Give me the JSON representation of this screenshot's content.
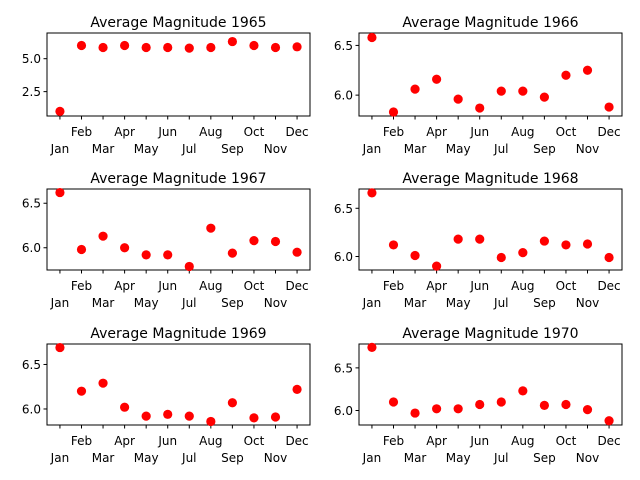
{
  "chart_data": [
    {
      "type": "scatter",
      "title": "Average Magnitude 1965",
      "categories": [
        "Jan",
        "Feb",
        "Mar",
        "Apr",
        "May",
        "Jun",
        "Jul",
        "Aug",
        "Sep",
        "Oct",
        "Nov",
        "Dec"
      ],
      "values": [
        1.0,
        6.0,
        5.85,
        6.0,
        5.85,
        5.85,
        5.8,
        5.85,
        6.3,
        6.0,
        5.85,
        5.9
      ],
      "ylim": [
        0.65,
        6.95
      ],
      "yticks": [
        2.5,
        5.0
      ],
      "ytick_labels": [
        "2.5",
        "5.0"
      ],
      "marker_color": "#ff0000"
    },
    {
      "type": "scatter",
      "title": "Average Magnitude 1966",
      "categories": [
        "Jan",
        "Feb",
        "Mar",
        "Apr",
        "May",
        "Jun",
        "Jul",
        "Aug",
        "Sep",
        "Oct",
        "Nov",
        "Dec"
      ],
      "values": [
        6.58,
        5.83,
        6.06,
        6.16,
        5.96,
        5.87,
        6.04,
        6.04,
        5.98,
        6.2,
        6.25,
        5.88
      ],
      "ylim": [
        5.79,
        6.625
      ],
      "yticks": [
        6.0,
        6.5
      ],
      "ytick_labels": [
        "6.0",
        "6.5"
      ],
      "marker_color": "#ff0000"
    },
    {
      "type": "scatter",
      "title": "Average Magnitude 1967",
      "categories": [
        "Jan",
        "Feb",
        "Mar",
        "Apr",
        "May",
        "Jun",
        "Jul",
        "Aug",
        "Sep",
        "Oct",
        "Nov",
        "Dec"
      ],
      "values": [
        6.62,
        5.98,
        6.13,
        6.0,
        5.92,
        5.92,
        5.79,
        6.22,
        5.94,
        6.08,
        6.07,
        5.95
      ],
      "ylim": [
        5.75,
        6.66
      ],
      "yticks": [
        6.0,
        6.5
      ],
      "ytick_labels": [
        "6.0",
        "6.5"
      ],
      "marker_color": "#ff0000"
    },
    {
      "type": "scatter",
      "title": "Average Magnitude 1968",
      "categories": [
        "Jan",
        "Feb",
        "Mar",
        "Apr",
        "May",
        "Jun",
        "Jul",
        "Aug",
        "Sep",
        "Oct",
        "Nov",
        "Dec"
      ],
      "values": [
        6.66,
        6.12,
        6.01,
        5.9,
        6.18,
        6.18,
        5.99,
        6.04,
        6.16,
        6.12,
        6.13,
        5.99
      ],
      "ylim": [
        5.86,
        6.7
      ],
      "yticks": [
        6.0,
        6.5
      ],
      "ytick_labels": [
        "6.0",
        "6.5"
      ],
      "marker_color": "#ff0000"
    },
    {
      "type": "scatter",
      "title": "Average Magnitude 1969",
      "categories": [
        "Jan",
        "Feb",
        "Mar",
        "Apr",
        "May",
        "Jun",
        "Jul",
        "Aug",
        "Sep",
        "Oct",
        "Nov",
        "Dec"
      ],
      "values": [
        6.69,
        6.2,
        6.29,
        6.02,
        5.92,
        5.94,
        5.92,
        5.86,
        6.07,
        5.9,
        5.91,
        6.22
      ],
      "ylim": [
        5.82,
        6.73
      ],
      "yticks": [
        6.0,
        6.5
      ],
      "ytick_labels": [
        "6.0",
        "6.5"
      ],
      "marker_color": "#ff0000"
    },
    {
      "type": "scatter",
      "title": "Average Magnitude 1970",
      "categories": [
        "Jan",
        "Feb",
        "Mar",
        "Apr",
        "May",
        "Jun",
        "Jul",
        "Aug",
        "Sep",
        "Oct",
        "Nov",
        "Dec"
      ],
      "values": [
        6.74,
        6.1,
        5.97,
        6.02,
        6.02,
        6.07,
        6.1,
        6.23,
        6.06,
        6.07,
        6.01,
        5.88
      ],
      "ylim": [
        5.83,
        6.78
      ],
      "yticks": [
        6.0,
        6.5
      ],
      "ytick_labels": [
        "6.0",
        "6.5"
      ],
      "marker_color": "#ff0000"
    }
  ]
}
